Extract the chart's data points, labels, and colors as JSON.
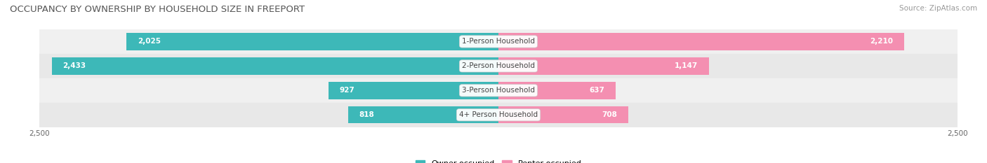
{
  "title": "OCCUPANCY BY OWNERSHIP BY HOUSEHOLD SIZE IN FREEPORT",
  "source": "Source: ZipAtlas.com",
  "categories": [
    "1-Person Household",
    "2-Person Household",
    "3-Person Household",
    "4+ Person Household"
  ],
  "owner_values": [
    2025,
    2433,
    927,
    818
  ],
  "renter_values": [
    2210,
    1147,
    637,
    708
  ],
  "max_val": 2500,
  "owner_color": "#3DB8B8",
  "renter_color": "#F48FB1",
  "row_bg_colors": [
    "#F0F0F0",
    "#E8E8E8"
  ],
  "title_fontsize": 9.5,
  "source_fontsize": 7.5,
  "bar_label_fontsize": 7.5,
  "category_fontsize": 7.5,
  "axis_label_fontsize": 7.5,
  "legend_fontsize": 8,
  "bar_height": 0.7,
  "figsize": [
    14.06,
    2.33
  ],
  "dpi": 100,
  "label_threshold_inside": 600,
  "xtick_positions": [
    -2500,
    2500
  ],
  "xtick_labels": [
    "2,500",
    "2,500"
  ]
}
